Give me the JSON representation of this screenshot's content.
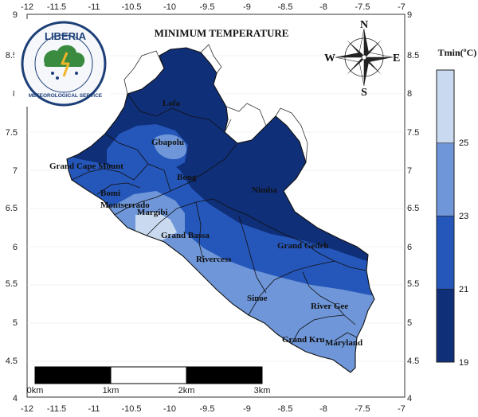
{
  "map": {
    "title": "MINIMUM TEMPERATURE",
    "logo": {
      "text_top": "LIBERIA",
      "text_ring": "METEOROLOGICAL SERVICE"
    },
    "compass": {
      "n": "N",
      "s": "S",
      "e": "E",
      "w": "W"
    },
    "x_ticks": [
      "-12",
      "-11.5",
      "-11",
      "-10.5",
      "-10",
      "-9.5",
      "-9",
      "-8.5",
      "-8",
      "-7.5",
      "-7"
    ],
    "y_ticks": [
      "9",
      "8.5",
      "8",
      "7.5",
      "7",
      "6.5",
      "6",
      "5.5",
      "5",
      "4.5",
      "4"
    ],
    "counties": [
      "Lofa",
      "Gbapolu",
      "Grand Cape Mount",
      "Bong",
      "Nimba",
      "Bomi",
      "Montserrado",
      "Margibi",
      "Grand Bassa",
      "Grand Gedeh",
      "Rivercess",
      "Sinoe",
      "River Gee",
      "Grand Kru",
      "Maryland"
    ],
    "scale_bar": {
      "labels": [
        "0km",
        "1km",
        "2km",
        "3km"
      ]
    },
    "legend": {
      "title": "Tmin(ºC)",
      "bounds": [
        "25",
        "23",
        "21",
        "19"
      ],
      "colors": [
        "#c9d9ef",
        "#6e96d8",
        "#2556b9",
        "#0f2f78"
      ]
    }
  }
}
